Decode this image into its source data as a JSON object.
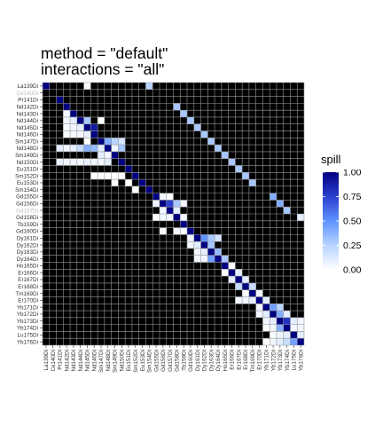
{
  "title": {
    "line1": "method = \"default\"",
    "line2": "interactions = \"all\""
  },
  "chart_data": {
    "type": "heatmap",
    "channels": [
      "La139Di",
      "Ce140Di",
      "Pr141Di",
      "Nd142Di",
      "Nd143Di",
      "Nd144Di",
      "Nd145Di",
      "Nd146Di",
      "Sm147Di",
      "Nd148Di",
      "Sm149Di",
      "Nd150Di",
      "Eu151Di",
      "Sm152Di",
      "Eu153Di",
      "Sm154Di",
      "Gd155Di",
      "Gd156Di",
      "Gd157Di",
      "Gd158Di",
      "Tb159Di",
      "Gd160Di",
      "Dy161Di",
      "Dy162Di",
      "Dy163Di",
      "Dy164Di",
      "Ho165Di",
      "Er166Di",
      "Er167Di",
      "Er168Di",
      "Tm169Di",
      "Er170Di",
      "Yb171Di",
      "Yb172Di",
      "Yb173Di",
      "Yb174Di",
      "Lu175Di",
      "Yb176Di"
    ],
    "greyed_y_labels": [
      "Ce140Di",
      "Gd157Di"
    ],
    "background_color": "#000000",
    "grid_color": "#9a9a9a",
    "cells": [
      [
        0,
        0,
        1.0
      ],
      [
        0,
        6,
        0.0
      ],
      [
        0,
        15,
        0.25
      ],
      [
        2,
        2,
        1.0
      ],
      [
        3,
        3,
        1.0
      ],
      [
        3,
        19,
        0.3
      ],
      [
        4,
        3,
        0.03
      ],
      [
        4,
        4,
        1.0
      ],
      [
        4,
        20,
        0.3
      ],
      [
        5,
        3,
        0.05
      ],
      [
        5,
        4,
        0.1
      ],
      [
        5,
        5,
        1.0
      ],
      [
        5,
        6,
        0.3
      ],
      [
        5,
        8,
        0.0
      ],
      [
        5,
        21,
        0.3
      ],
      [
        6,
        3,
        0.03
      ],
      [
        6,
        4,
        0.05
      ],
      [
        6,
        5,
        0.1
      ],
      [
        6,
        6,
        1.0
      ],
      [
        6,
        7,
        0.9
      ],
      [
        6,
        22,
        0.3
      ],
      [
        7,
        3,
        0.02
      ],
      [
        7,
        4,
        0.03
      ],
      [
        7,
        5,
        0.05
      ],
      [
        7,
        6,
        0.08
      ],
      [
        7,
        7,
        1.0
      ],
      [
        7,
        23,
        0.3
      ],
      [
        8,
        6,
        0.0
      ],
      [
        8,
        8,
        1.0
      ],
      [
        8,
        9,
        0.4
      ],
      [
        8,
        10,
        0.25
      ],
      [
        8,
        11,
        0.15
      ],
      [
        8,
        24,
        0.3
      ],
      [
        9,
        2,
        0.1
      ],
      [
        9,
        3,
        0.05
      ],
      [
        9,
        4,
        0.1
      ],
      [
        9,
        5,
        0.2
      ],
      [
        9,
        6,
        0.4
      ],
      [
        9,
        7,
        0.35
      ],
      [
        9,
        8,
        0.1
      ],
      [
        9,
        9,
        1.0
      ],
      [
        9,
        10,
        0.05
      ],
      [
        9,
        11,
        0.3
      ],
      [
        9,
        25,
        0.3
      ],
      [
        10,
        8,
        0.1
      ],
      [
        10,
        9,
        0.05
      ],
      [
        10,
        10,
        1.0
      ],
      [
        10,
        26,
        0.3
      ],
      [
        11,
        2,
        0.08
      ],
      [
        11,
        3,
        0.05
      ],
      [
        11,
        4,
        0.05
      ],
      [
        11,
        5,
        0.05
      ],
      [
        11,
        6,
        0.08
      ],
      [
        11,
        7,
        0.05
      ],
      [
        11,
        8,
        0.05
      ],
      [
        11,
        9,
        0.1
      ],
      [
        11,
        11,
        1.0
      ],
      [
        11,
        27,
        0.3
      ],
      [
        12,
        12,
        1.0
      ],
      [
        12,
        28,
        0.3
      ],
      [
        13,
        7,
        0.0
      ],
      [
        13,
        8,
        0.0
      ],
      [
        13,
        9,
        0.0
      ],
      [
        13,
        10,
        0.0
      ],
      [
        13,
        11,
        0.0
      ],
      [
        13,
        13,
        1.0
      ],
      [
        13,
        29,
        0.3
      ],
      [
        14,
        10,
        0.0
      ],
      [
        14,
        12,
        0.0
      ],
      [
        14,
        14,
        1.0
      ],
      [
        14,
        30,
        0.3
      ],
      [
        15,
        13,
        0.0
      ],
      [
        15,
        15,
        1.0
      ],
      [
        16,
        16,
        1.0
      ],
      [
        16,
        17,
        0.05
      ],
      [
        16,
        18,
        0.0
      ],
      [
        16,
        33,
        0.4
      ],
      [
        17,
        16,
        0.05
      ],
      [
        17,
        17,
        1.0
      ],
      [
        17,
        18,
        0.75
      ],
      [
        17,
        19,
        0.3
      ],
      [
        17,
        20,
        0.05
      ],
      [
        17,
        34,
        0.4
      ],
      [
        18,
        17,
        0.05
      ],
      [
        18,
        18,
        1.0
      ],
      [
        18,
        19,
        0.1
      ],
      [
        18,
        35,
        0.3
      ],
      [
        19,
        16,
        0.0
      ],
      [
        19,
        17,
        0.05
      ],
      [
        19,
        18,
        0.05
      ],
      [
        19,
        19,
        1.0
      ],
      [
        19,
        20,
        0.05
      ],
      [
        19,
        37,
        0.1
      ],
      [
        20,
        20,
        1.0
      ],
      [
        21,
        17,
        0.02
      ],
      [
        21,
        19,
        0.05
      ],
      [
        21,
        20,
        0.02
      ],
      [
        21,
        21,
        1.0
      ],
      [
        22,
        21,
        0.05
      ],
      [
        22,
        22,
        1.0
      ],
      [
        22,
        23,
        0.5
      ],
      [
        22,
        24,
        0.3
      ],
      [
        22,
        25,
        0.15
      ],
      [
        23,
        21,
        0.05
      ],
      [
        23,
        22,
        0.1
      ],
      [
        23,
        23,
        1.0
      ],
      [
        23,
        24,
        0.3
      ],
      [
        24,
        22,
        0.05
      ],
      [
        24,
        23,
        0.1
      ],
      [
        24,
        24,
        1.0
      ],
      [
        24,
        25,
        0.35
      ],
      [
        25,
        22,
        0.05
      ],
      [
        25,
        23,
        0.05
      ],
      [
        25,
        24,
        0.45
      ],
      [
        25,
        25,
        1.0
      ],
      [
        25,
        26,
        0.3
      ],
      [
        26,
        26,
        1.0
      ],
      [
        26,
        27,
        0.0
      ],
      [
        27,
        26,
        0.0
      ],
      [
        27,
        27,
        1.0
      ],
      [
        27,
        28,
        0.1
      ],
      [
        28,
        27,
        0.1
      ],
      [
        28,
        28,
        1.0
      ],
      [
        28,
        29,
        0.1
      ],
      [
        29,
        28,
        0.2
      ],
      [
        29,
        29,
        1.0
      ],
      [
        29,
        30,
        0.2
      ],
      [
        30,
        29,
        0.0
      ],
      [
        30,
        30,
        1.0
      ],
      [
        30,
        31,
        0.05
      ],
      [
        31,
        28,
        0.05
      ],
      [
        31,
        29,
        0.05
      ],
      [
        31,
        30,
        0.1
      ],
      [
        31,
        31,
        1.0
      ],
      [
        31,
        32,
        0.1
      ],
      [
        32,
        31,
        0.05
      ],
      [
        32,
        32,
        1.0
      ],
      [
        32,
        33,
        0.45
      ],
      [
        32,
        34,
        0.25
      ],
      [
        33,
        31,
        0.05
      ],
      [
        33,
        32,
        0.1
      ],
      [
        33,
        33,
        1.0
      ],
      [
        33,
        34,
        0.4
      ],
      [
        33,
        35,
        0.1
      ],
      [
        34,
        32,
        0.05
      ],
      [
        34,
        33,
        0.1
      ],
      [
        34,
        34,
        1.0
      ],
      [
        34,
        35,
        0.8
      ],
      [
        34,
        36,
        0.1
      ],
      [
        34,
        37,
        0.05
      ],
      [
        35,
        32,
        0.02
      ],
      [
        35,
        33,
        0.05
      ],
      [
        35,
        34,
        0.4
      ],
      [
        35,
        35,
        1.0
      ],
      [
        35,
        36,
        0.05
      ],
      [
        35,
        37,
        0.05
      ],
      [
        36,
        33,
        0.02
      ],
      [
        36,
        34,
        0.05
      ],
      [
        36,
        35,
        0.1
      ],
      [
        36,
        36,
        1.0
      ],
      [
        36,
        37,
        0.1
      ],
      [
        37,
        32,
        0.0
      ],
      [
        37,
        33,
        0.05
      ],
      [
        37,
        34,
        0.1
      ],
      [
        37,
        35,
        0.2
      ],
      [
        37,
        36,
        0.45
      ],
      [
        37,
        37,
        1.0
      ]
    ],
    "legend": {
      "title": "spill",
      "ticks": [
        1.0,
        0.75,
        0.5,
        0.25,
        0.0
      ],
      "tick_labels": [
        "1.00",
        "0.75",
        "0.50",
        "0.25",
        "0.00"
      ],
      "range": [
        0,
        1
      ],
      "colors": [
        "#ffffff",
        "#b8d4ff",
        "#5f93ff",
        "#2b3fd0",
        "#000080"
      ],
      "placement": "right"
    }
  }
}
